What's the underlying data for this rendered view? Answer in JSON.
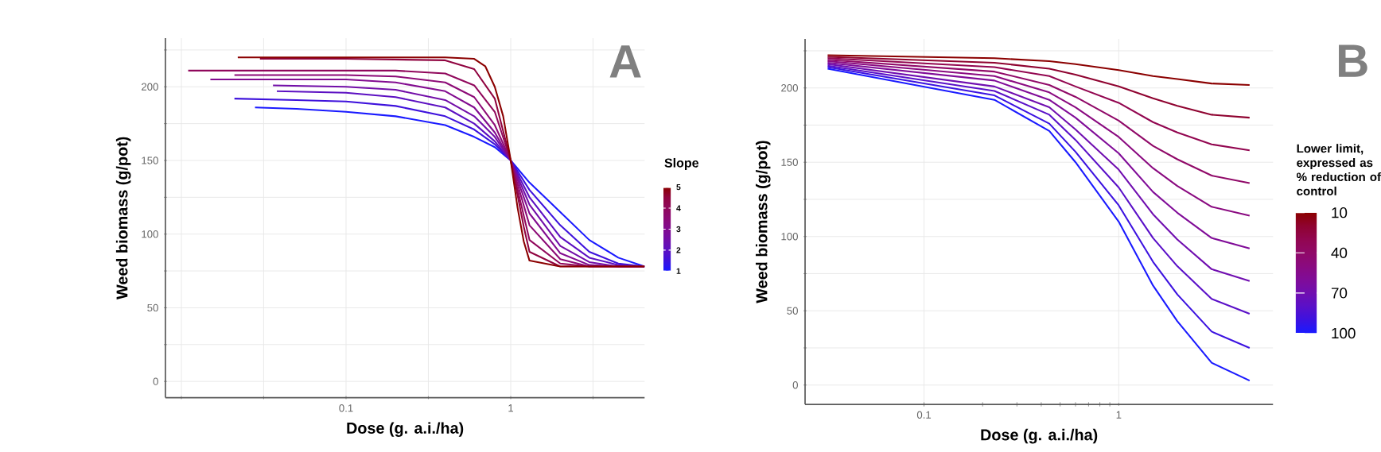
{
  "chart_data": [
    {
      "type": "line",
      "xlabel": "Dose (g. a.i./ha)",
      "ylabel": "Weed biomass (g/pot)",
      "annotations": [
        "A"
      ],
      "log": "x",
      "grid": true,
      "xlim": [
        0.008,
        6.5
      ],
      "xticks": [
        {
          "value": 0.01,
          "label": null
        },
        {
          "value": 0.0316,
          "label": null
        },
        0.1,
        {
          "value": 0.316,
          "label": null
        },
        1,
        {
          "value": 3.16,
          "label": null
        }
      ],
      "ylim": [
        -11,
        233
      ],
      "yticks": [
        0,
        {
          "value": 25,
          "label": null
        },
        50,
        {
          "value": 75,
          "label": null
        },
        100,
        {
          "value": 125,
          "label": null
        },
        150,
        {
          "value": 175,
          "label": null
        },
        200,
        {
          "value": 225,
          "label": null
        }
      ],
      "clabel": "Slope",
      "clim": [
        1,
        5
      ],
      "cticks": [
        1,
        2,
        3,
        4,
        5
      ],
      "series": [
        {
          "color": "#1a1aff",
          "x": [
            0.028,
            0.05,
            0.1,
            0.2,
            0.4,
            0.6,
            0.8,
            1,
            1.3,
            2,
            3,
            4.5,
            6.5
          ],
          "values": [
            186,
            185,
            183,
            180,
            174,
            166,
            159,
            150,
            135,
            115,
            96,
            84,
            78
          ]
        },
        {
          "color": "#3e12dc",
          "x": [
            0.021,
            0.05,
            0.1,
            0.2,
            0.4,
            0.6,
            0.8,
            1,
            1.3,
            2,
            3,
            4.5,
            6.5
          ],
          "values": [
            192,
            191,
            190,
            187,
            180,
            171,
            161,
            150,
            130,
            106,
            88,
            80,
            78
          ]
        },
        {
          "color": "#5c10c2",
          "x": [
            0.038,
            0.1,
            0.2,
            0.4,
            0.6,
            0.8,
            1,
            1.3,
            2,
            3,
            4.5,
            6.5
          ],
          "values": [
            197,
            196,
            193,
            186,
            175,
            163,
            150,
            125,
            98,
            84,
            79,
            78
          ]
        },
        {
          "color": "#720ea8",
          "x": [
            0.036,
            0.1,
            0.2,
            0.4,
            0.6,
            0.8,
            1,
            1.3,
            2,
            3,
            4.5,
            6.5
          ],
          "values": [
            201,
            200,
            198,
            191,
            180,
            166,
            150,
            120,
            92,
            81,
            78,
            78
          ]
        },
        {
          "color": "#820c90",
          "x": [
            0.015,
            0.1,
            0.2,
            0.4,
            0.6,
            0.8,
            1,
            1.3,
            2,
            3,
            4.5,
            6.5
          ],
          "values": [
            205,
            205,
            203,
            197,
            186,
            169,
            150,
            114,
            87,
            79,
            78,
            78
          ]
        },
        {
          "color": "#8c0a76",
          "x": [
            0.021,
            0.1,
            0.2,
            0.4,
            0.6,
            0.8,
            1,
            1.3,
            2,
            3,
            6.5
          ],
          "values": [
            208,
            208,
            207,
            203,
            193,
            174,
            150,
            106,
            83,
            78,
            78
          ]
        },
        {
          "color": "#90085c",
          "x": [
            0.011,
            0.1,
            0.2,
            0.4,
            0.6,
            0.8,
            1,
            1.3,
            2,
            3,
            6.5
          ],
          "values": [
            211,
            211,
            211,
            209,
            201,
            183,
            150,
            96,
            80,
            78,
            78
          ]
        },
        {
          "color": "#900440",
          "x": [
            0.03,
            0.1,
            0.4,
            0.6,
            0.8,
            1,
            1.2,
            1.3,
            2,
            6.5
          ],
          "values": [
            219,
            219,
            218,
            212,
            192,
            150,
            105,
            88,
            78,
            78
          ]
        },
        {
          "color": "#8b0000",
          "x": [
            0.022,
            0.1,
            0.4,
            0.6,
            0.7,
            0.8,
            0.9,
            1,
            1.1,
            1.2,
            1.3,
            2,
            6.5
          ],
          "values": [
            220,
            220,
            220,
            219,
            214,
            200,
            180,
            150,
            118,
            95,
            82,
            78,
            78
          ]
        }
      ]
    },
    {
      "type": "line",
      "xlabel": "Dose (g. a.i./ha)",
      "ylabel": "Weed biomass (g/pot)",
      "annotations": [
        "B"
      ],
      "log": "x",
      "grid": true,
      "xlim": [
        0.0245,
        6.2
      ],
      "xticks": [
        0.1,
        1
      ],
      "ylim": [
        -13,
        233
      ],
      "yticks": [
        0,
        {
          "value": 25,
          "label": null
        },
        50,
        {
          "value": 75,
          "label": null
        },
        100,
        {
          "value": 125,
          "label": null
        },
        150,
        {
          "value": 175,
          "label": null
        },
        200,
        {
          "value": 225,
          "label": null
        }
      ],
      "clabel": "Lower limit, expressed as % reduction of control",
      "clim": [
        100,
        10
      ],
      "cticks": [
        10,
        40,
        70,
        100
      ],
      "x": [
        0.032,
        0.23,
        0.44,
        0.6,
        1,
        1.5,
        2,
        3,
        4.7
      ],
      "series": [
        {
          "color": "#8b0000",
          "values": [
            222,
            220,
            218,
            216,
            212,
            208,
            206,
            203,
            202
          ]
        },
        {
          "color": "#8f0330",
          "values": [
            221,
            217,
            213,
            209,
            201,
            193,
            188,
            182,
            180
          ]
        },
        {
          "color": "#920650",
          "values": [
            220,
            214,
            208,
            201,
            190,
            177,
            170,
            162,
            158
          ]
        },
        {
          "color": "#900968",
          "values": [
            219,
            211,
            202,
            194,
            178,
            161,
            152,
            141,
            136
          ]
        },
        {
          "color": "#8a0a80",
          "values": [
            218,
            208,
            197,
            187,
            167,
            146,
            134,
            120,
            114
          ]
        },
        {
          "color": "#800c98",
          "values": [
            217,
            205,
            192,
            180,
            156,
            130,
            116,
            99,
            92
          ]
        },
        {
          "color": "#700eb0",
          "values": [
            216,
            201,
            187,
            172,
            145,
            115,
            98,
            78,
            70
          ]
        },
        {
          "color": "#5a10c8",
          "values": [
            215,
            198,
            182,
            165,
            133,
            99,
            80,
            58,
            48
          ]
        },
        {
          "color": "#3c12e0",
          "values": [
            214,
            195,
            176,
            157,
            121,
            83,
            61,
            36,
            25
          ]
        },
        {
          "color": "#1a1aff",
          "values": [
            213,
            192,
            171,
            150,
            110,
            67,
            43,
            15,
            3
          ]
        }
      ]
    }
  ]
}
